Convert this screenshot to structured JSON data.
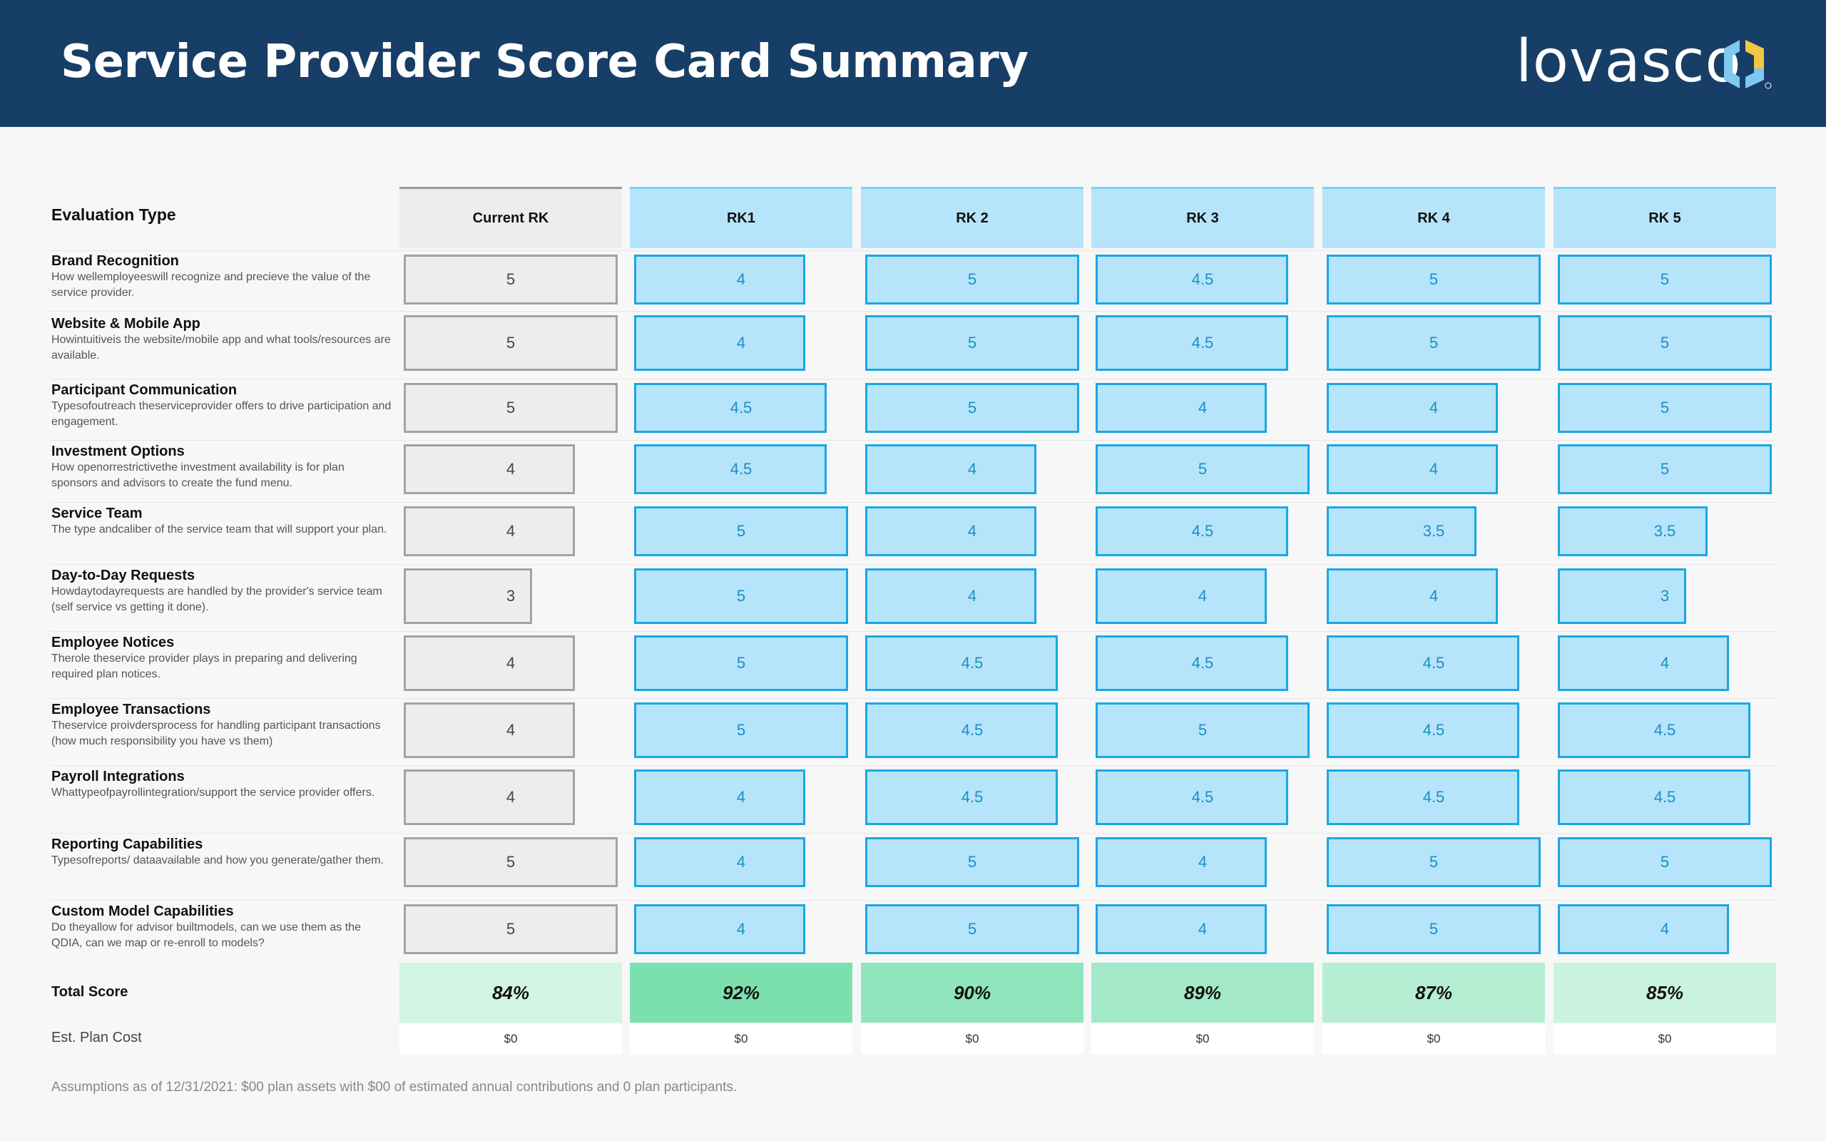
{
  "header": {
    "title": "Service Provider Score Card Summary"
  },
  "brand": {
    "name": "lovasco",
    "colors": {
      "navy": "#173e66",
      "blue": "#7fc8f0",
      "yellow": "#f2c744"
    }
  },
  "table": {
    "label": "Evaluation Type",
    "columns": [
      "Current RK",
      "RK1",
      "RK 2",
      "RK 3",
      "RK 4",
      "RK 5"
    ],
    "rows": [
      {
        "title": "Brand Recognition",
        "desc": "How wellemployeeswill recognize and precieve the value of the service provider.",
        "scores": [
          "5",
          "4",
          "5",
          "4.5",
          "5",
          "5"
        ]
      },
      {
        "title": "Website & Mobile App",
        "desc": "Howintuitiveis the website/mobile app and what tools/resources are available.",
        "scores": [
          "5",
          "4",
          "5",
          "4.5",
          "5",
          "5"
        ]
      },
      {
        "title": "Participant Communication",
        "desc": "Typesofoutreach theserviceprovider offers to drive participation and engagement.",
        "scores": [
          "5",
          "4.5",
          "5",
          "4",
          "4",
          "5"
        ]
      },
      {
        "title": "Investment Options",
        "desc": "How openorrestrictivethe investment availability is for plan sponsors and advisors to create the fund menu.",
        "scores": [
          "4",
          "4.5",
          "4",
          "5",
          "4",
          "5"
        ]
      },
      {
        "title": "Service Team",
        "desc": "The type andcaliber of the service team that will support your plan.",
        "scores": [
          "4",
          "5",
          "4",
          "4.5",
          "3.5",
          "3.5"
        ]
      },
      {
        "title": "Day-to-Day Requests",
        "desc": "Howdaytodayrequests are handled by the provider's service team (self service vs getting it done).",
        "scores": [
          "3",
          "5",
          "4",
          "4",
          "4",
          "3"
        ]
      },
      {
        "title": "Employee Notices",
        "desc": "Therole theservice provider plays in preparing and delivering required plan notices.",
        "scores": [
          "4",
          "5",
          "4.5",
          "4.5",
          "4.5",
          "4"
        ]
      },
      {
        "title": "Employee Transactions",
        "desc": "Theservice proivdersprocess for handling participant transactions (how much responsibility you have vs them)",
        "scores": [
          "4",
          "5",
          "4.5",
          "5",
          "4.5",
          "4.5"
        ]
      },
      {
        "title": "Payroll Integrations",
        "desc": "Whattypeofpayrollintegration/support the service provider offers.",
        "scores": [
          "4",
          "4",
          "4.5",
          "4.5",
          "4.5",
          "4.5"
        ]
      },
      {
        "title": "Reporting Capabilities",
        "desc": "Typesofreports/ dataavailable and how you generate/gather them.",
        "scores": [
          "5",
          "4",
          "5",
          "4",
          "5",
          "5"
        ]
      },
      {
        "title": "Custom Model Capabilities",
        "desc": "Do theyallow for advisor builtmodels, can we use them as the QDIA, can we map or re-enroll to models?",
        "scores": [
          "5",
          "4",
          "5",
          "4",
          "5",
          "4"
        ]
      }
    ],
    "total": {
      "label": "Total Score",
      "values": [
        "84%",
        "92%",
        "90%",
        "89%",
        "87%",
        "85%"
      ]
    },
    "cost": {
      "label": "Est. Plan Cost",
      "values": [
        "$0",
        "$0",
        "$0",
        "$0",
        "$0",
        "$0"
      ]
    }
  },
  "footnote": "Assumptions as of 12/31/2021: $00 plan assets with $00 of estimated annual contributions and 0 plan participants."
}
